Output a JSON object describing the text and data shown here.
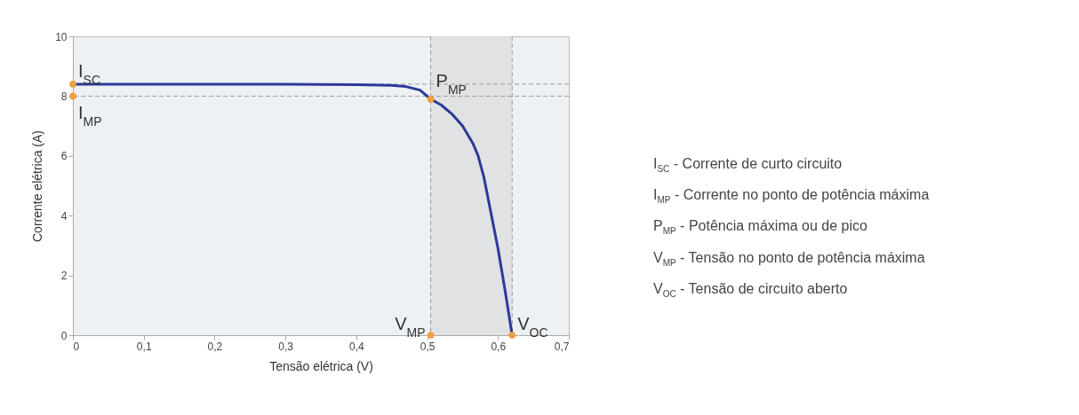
{
  "chart_data": {
    "type": "line",
    "xlabel": "Tensão elétrica (V)",
    "ylabel": "Corrente elétrica (A)",
    "xlim": [
      0,
      0.7
    ],
    "ylim": [
      0,
      10
    ],
    "xticks": [
      0,
      {
        "value": 0.1,
        "label": "0,1"
      },
      {
        "value": 0.2,
        "label": "0,2"
      },
      {
        "value": 0.3,
        "label": "0,3"
      },
      {
        "value": 0.4,
        "label": "0,4"
      },
      {
        "value": 0.5,
        "label": "0,5"
      },
      {
        "value": 0.6,
        "label": "0,6"
      },
      {
        "value": 0.7,
        "label": "0,7"
      }
    ],
    "yticks": [
      0,
      2,
      4,
      6,
      8,
      10
    ],
    "grid": false,
    "series": [
      {
        "color": "#2b3a9a",
        "x": [
          0,
          0.1,
          0.2,
          0.3,
          0.4,
          0.45,
          0.47,
          0.49,
          0.505,
          0.52,
          0.535,
          0.55,
          0.565,
          0.572,
          0.58,
          0.59,
          0.6,
          0.61,
          0.62
        ],
        "values": [
          8.4,
          8.4,
          8.4,
          8.4,
          8.38,
          8.36,
          8.32,
          8.2,
          7.9,
          7.7,
          7.4,
          7.0,
          6.4,
          6.0,
          5.3,
          4.1,
          2.9,
          1.5,
          0
        ]
      },
      {
        "type": "scatter",
        "color": "#f0a040",
        "marker": "circle",
        "x": [
          0,
          0,
          0.505,
          0.505,
          0.62
        ],
        "values": [
          8.4,
          8,
          7.9,
          0,
          0
        ]
      }
    ],
    "ref_lines": [
      {
        "axis": "y",
        "value": 8.4,
        "color": "#9a9a9a",
        "line_style": "dashed"
      },
      {
        "axis": "y",
        "value": 8,
        "color": "#9a9a9a",
        "line_style": "dashed"
      },
      {
        "axis": "x",
        "value": 0.505,
        "color": "#9a9a9a",
        "line_style": "dashed"
      },
      {
        "axis": "x",
        "value": 0.62,
        "color": "#9a9a9a",
        "line_style": "dashed"
      }
    ],
    "bands": [
      {
        "axis": "x",
        "from": 0.505,
        "to": 0.62,
        "color": "#dcdcdc"
      }
    ],
    "annotations": [
      {
        "text": "I$_{SC}$",
        "x": 0,
        "y": 8.4
      },
      {
        "text": "I$_{MP}$",
        "x": 0,
        "y": 8
      },
      {
        "text": "P$_{MP}$",
        "x": 0.505,
        "y": 7.9
      },
      {
        "text": "V$_{MP}$",
        "x": 0.505,
        "y": 0
      },
      {
        "text": "V$_{OC}$",
        "x": 0.62,
        "y": 0
      },
      "I$_{SC}$ - Corrente de curto circuito",
      "I$_{MP}$ - Corrente no ponto de potência máxima",
      "P$_{MP}$ - Potência máxima ou de pico",
      "V$_{MP}$ - Tensão no ponto de potência máxima",
      "V$_{OC}$ - Tensão de circuito aberto"
    ]
  }
}
